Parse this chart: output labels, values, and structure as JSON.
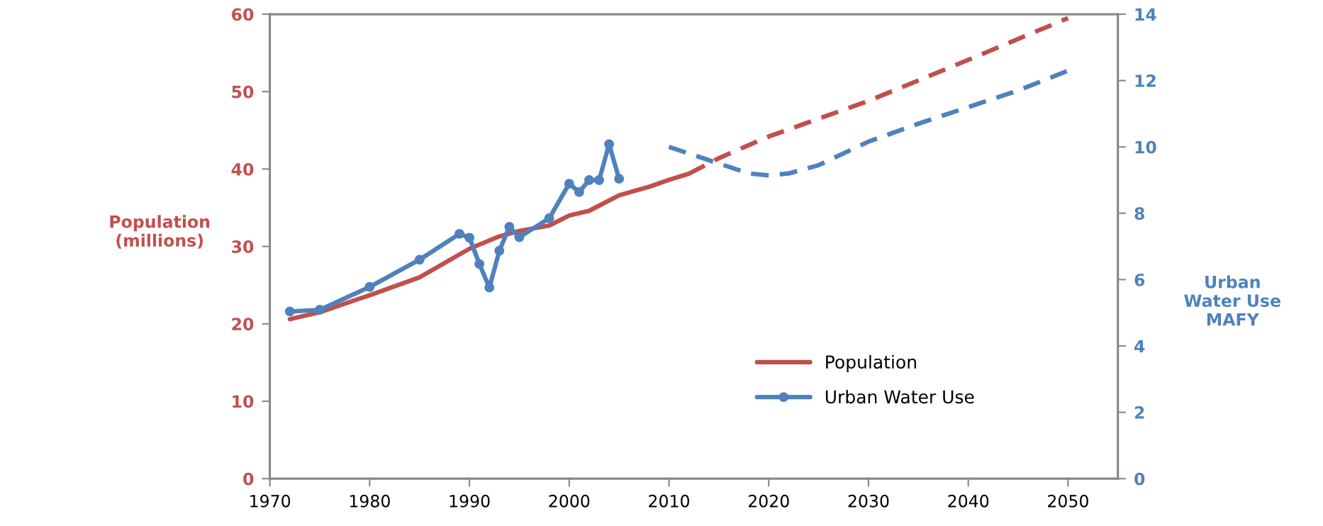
{
  "chart_data": {
    "type": "line",
    "ylabel": "Population\n(millions)",
    "y2label": "Urban\nWater Use\nMAFY",
    "xlim": [
      1970,
      2055
    ],
    "xticks": [
      1970,
      1980,
      1990,
      2000,
      2010,
      2020,
      2030,
      2040,
      2050
    ],
    "ylim": [
      0,
      60
    ],
    "yticks": [
      0,
      10,
      20,
      30,
      40,
      50,
      60
    ],
    "y2lim": [
      0,
      14
    ],
    "y2ticks": [
      0,
      2,
      4,
      6,
      8,
      10,
      12,
      14
    ],
    "grid": false,
    "legend": "bottom right",
    "series": [
      {
        "name": "Population",
        "color": "#c0504d",
        "axis": "y",
        "line_style": "solid",
        "marker": "none",
        "x": [
          1972,
          1975,
          1980,
          1985,
          1990,
          1993,
          1995,
          1998,
          2000,
          2002,
          2005,
          2008,
          2010,
          2012
        ],
        "values": [
          20.6,
          21.5,
          23.7,
          26.0,
          29.7,
          31.3,
          32.0,
          32.7,
          34.0,
          34.6,
          36.6,
          37.7,
          38.6,
          39.4
        ]
      },
      {
        "color": "#c0504d",
        "axis": "y",
        "line_style": "dashed",
        "marker": "none",
        "x": [
          2012,
          2015,
          2020,
          2030,
          2040,
          2050
        ],
        "values": [
          39.4,
          41.4,
          44.2,
          48.8,
          54.1,
          59.5
        ]
      },
      {
        "name": "Urban Water Use",
        "color": "#4f81bd",
        "axis": "y2",
        "line_style": "solid",
        "marker": "circle",
        "x": [
          1972,
          1975,
          1980,
          1985,
          1989,
          1990,
          1991,
          1992,
          1993,
          1994,
          1995,
          1998,
          2000,
          2001,
          2002,
          2003,
          2004,
          2005
        ],
        "values": [
          5.04,
          5.09,
          5.78,
          6.6,
          7.38,
          7.26,
          6.47,
          5.76,
          6.87,
          7.59,
          7.28,
          7.85,
          8.89,
          8.64,
          9.0,
          9.0,
          10.08,
          9.04
        ]
      },
      {
        "color": "#4f81bd",
        "axis": "y2",
        "line_style": "dashed",
        "marker": "none",
        "x": [
          2010,
          2012,
          2015,
          2018,
          2020,
          2022,
          2025,
          2030,
          2035,
          2040,
          2045,
          2050
        ],
        "values": [
          10.0,
          9.8,
          9.5,
          9.2,
          9.14,
          9.2,
          9.45,
          10.16,
          10.7,
          11.2,
          11.7,
          12.3
        ]
      }
    ]
  }
}
